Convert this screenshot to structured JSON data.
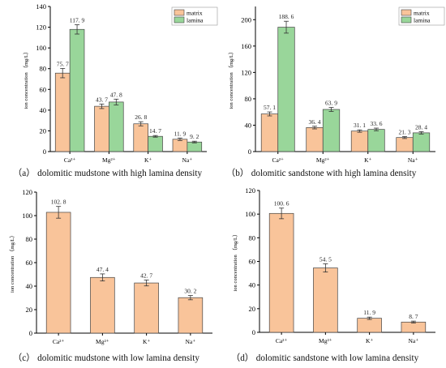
{
  "colors": {
    "matrix": "#F9C49A",
    "lamina": "#99D69A",
    "axis": "#000000",
    "bar_stroke": "#000000"
  },
  "chart_data": [
    {
      "type": "bar",
      "caption": "（a） dolomitic mudstone with high lamina density",
      "ylabel": "ion concentration （mg/L）",
      "categories": [
        "Ca²⁺",
        "Mg²⁺",
        "K⁺",
        "Na⁺"
      ],
      "ylim": [
        0,
        140
      ],
      "yticks": [
        "0",
        "20",
        "40",
        "60",
        "80",
        "100",
        "120",
        "140"
      ],
      "legend": "top-right",
      "series": [
        {
          "name": "matrix",
          "color_key": "matrix",
          "values": [
            75.7,
            43.7,
            26.8,
            11.9
          ],
          "labels": [
            "75. 7",
            "43. 7",
            "26. 8",
            "11. 9"
          ],
          "errors": [
            4.5,
            2.2,
            2.0,
            1.2
          ]
        },
        {
          "name": "lamina",
          "color_key": "lamina",
          "values": [
            117.9,
            47.8,
            14.7,
            9.2
          ],
          "labels": [
            "117. 9",
            "47. 8",
            "14. 7",
            "9. 2"
          ],
          "errors": [
            4.5,
            2.8,
            0.8,
            0.8
          ]
        }
      ]
    },
    {
      "type": "bar",
      "caption": "（b） dolomitic sandstone with high lamina density",
      "ylabel": "ion concentration （mg/L）",
      "categories": [
        "Ca²⁺",
        "Mg²⁺",
        "K⁺",
        "Na⁺"
      ],
      "ylim": [
        0,
        220
      ],
      "yticks": [
        "0",
        "40",
        "80",
        "120",
        "160",
        "200"
      ],
      "legend": "top-right",
      "series": [
        {
          "name": "matrix",
          "color_key": "matrix",
          "values": [
            57.1,
            36.4,
            31.1,
            21.3
          ],
          "labels": [
            "57. 1",
            "36. 4",
            "31. 1",
            "21. 3"
          ],
          "errors": [
            3.0,
            2.0,
            1.8,
            1.5
          ]
        },
        {
          "name": "lamina",
          "color_key": "lamina",
          "values": [
            188.6,
            63.9,
            33.6,
            28.4
          ],
          "labels": [
            "188. 6",
            "63. 9",
            "33. 6",
            "28. 4"
          ],
          "errors": [
            9.0,
            3.0,
            2.0,
            1.8
          ]
        }
      ]
    },
    {
      "type": "bar",
      "caption": "（c） dolomitic mudstone with low lamina density",
      "ylabel": "ion concentration （mg/L）",
      "categories": [
        "Ca²⁺",
        "Mg²⁺",
        "K⁺",
        "Na⁺"
      ],
      "ylim": [
        0,
        120
      ],
      "yticks": [
        "0",
        "20",
        "40",
        "60",
        "80",
        "100",
        "120"
      ],
      "legend": "none",
      "series": [
        {
          "name": "",
          "color_key": "matrix",
          "values": [
            102.8,
            47.4,
            42.7,
            30.2
          ],
          "labels": [
            "102. 8",
            "47. 4",
            "42. 7",
            "30. 2"
          ],
          "errors": [
            5.0,
            3.0,
            2.5,
            1.8
          ]
        }
      ]
    },
    {
      "type": "bar",
      "caption": "（d） dolomitic sandstone with low lamina density",
      "ylabel": "ion concentration （mg/L）",
      "categories": [
        "Ca²⁺",
        "Mg²⁺",
        "K⁺",
        "Na⁺"
      ],
      "ylim": [
        0,
        120
      ],
      "yticks": [
        "0",
        "20",
        "40",
        "60",
        "80",
        "100",
        "120"
      ],
      "legend": "none",
      "series": [
        {
          "name": "",
          "color_key": "matrix",
          "values": [
            100.6,
            54.5,
            11.9,
            8.7
          ],
          "labels": [
            "100. 6",
            "54. 5",
            "11. 9",
            "8. 7"
          ],
          "errors": [
            4.5,
            3.5,
            1.0,
            0.8
          ]
        }
      ]
    }
  ]
}
